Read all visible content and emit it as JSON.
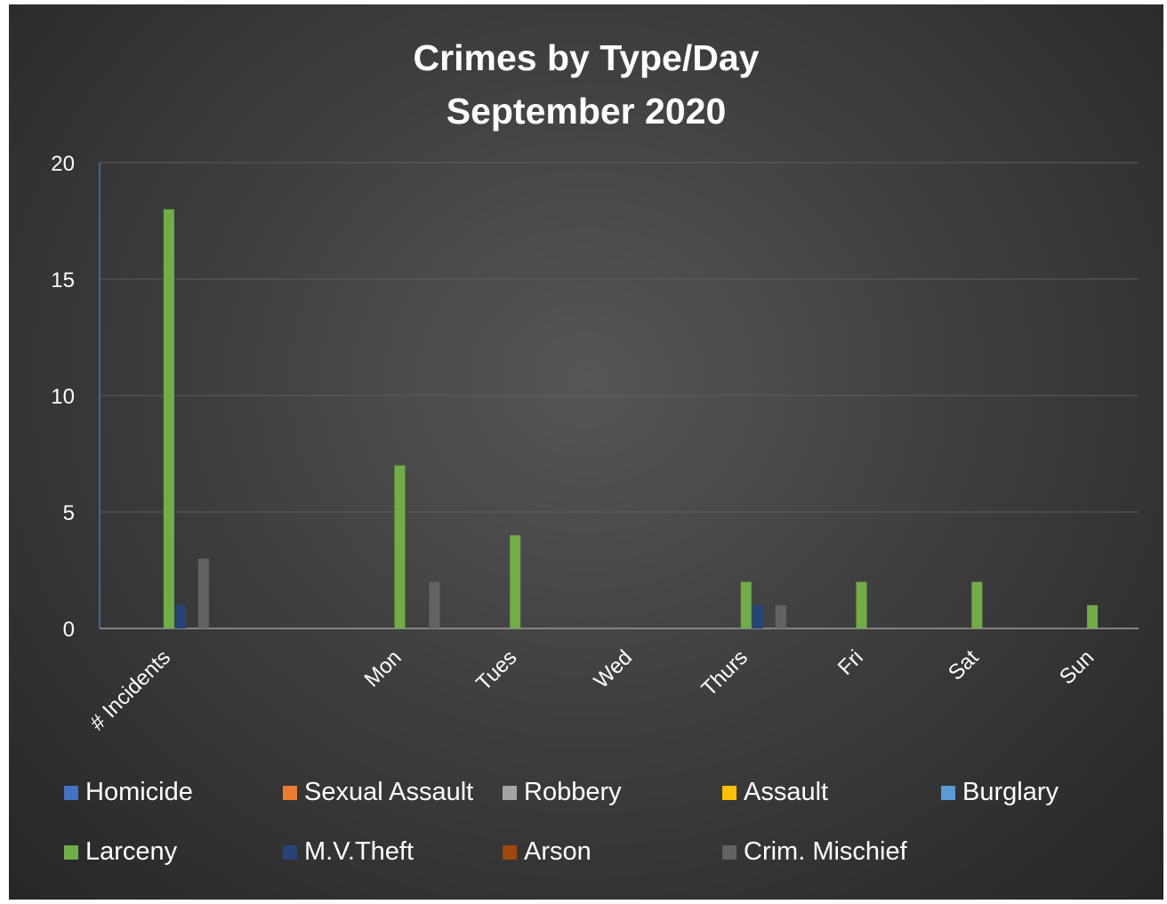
{
  "chart_data": {
    "type": "bar",
    "title_lines": [
      "Crimes by Type/Day",
      "September 2020"
    ],
    "categories": [
      "# Incidents",
      "",
      "Mon",
      "Tues",
      "Wed",
      "Thurs",
      "Fri",
      "Sat",
      "Sun"
    ],
    "ylim": [
      0,
      20
    ],
    "yticks": [
      0,
      5,
      10,
      15,
      20
    ],
    "grid": true,
    "legend_position": "bottom",
    "series": [
      {
        "name": "Homicide",
        "color": "#4472C4",
        "values": [
          0,
          0,
          0,
          0,
          0,
          0,
          0,
          0,
          0
        ]
      },
      {
        "name": "Sexual Assault",
        "color": "#ED7D31",
        "values": [
          0,
          0,
          0,
          0,
          0,
          0,
          0,
          0,
          0
        ]
      },
      {
        "name": "Robbery",
        "color": "#A5A5A5",
        "values": [
          0,
          0,
          0,
          0,
          0,
          0,
          0,
          0,
          0
        ]
      },
      {
        "name": "Assault",
        "color": "#FFC000",
        "values": [
          0,
          0,
          0,
          0,
          0,
          0,
          0,
          0,
          0
        ]
      },
      {
        "name": "Burglary",
        "color": "#5B9BD5",
        "values": [
          0,
          0,
          0,
          0,
          0,
          0,
          0,
          0,
          0
        ]
      },
      {
        "name": "Larceny",
        "color": "#70AD47",
        "values": [
          18,
          0,
          7,
          4,
          0,
          2,
          2,
          2,
          1
        ]
      },
      {
        "name": "M.V.Theft",
        "color": "#264478",
        "values": [
          1,
          0,
          0,
          0,
          0,
          1,
          0,
          0,
          0
        ]
      },
      {
        "name": "Arson",
        "color": "#9E480E",
        "values": [
          0,
          0,
          0,
          0,
          0,
          0,
          0,
          0,
          0
        ]
      },
      {
        "name": "Crim. Mischief",
        "color": "#636363",
        "values": [
          3,
          0,
          2,
          0,
          0,
          1,
          0,
          0,
          0
        ]
      }
    ]
  }
}
